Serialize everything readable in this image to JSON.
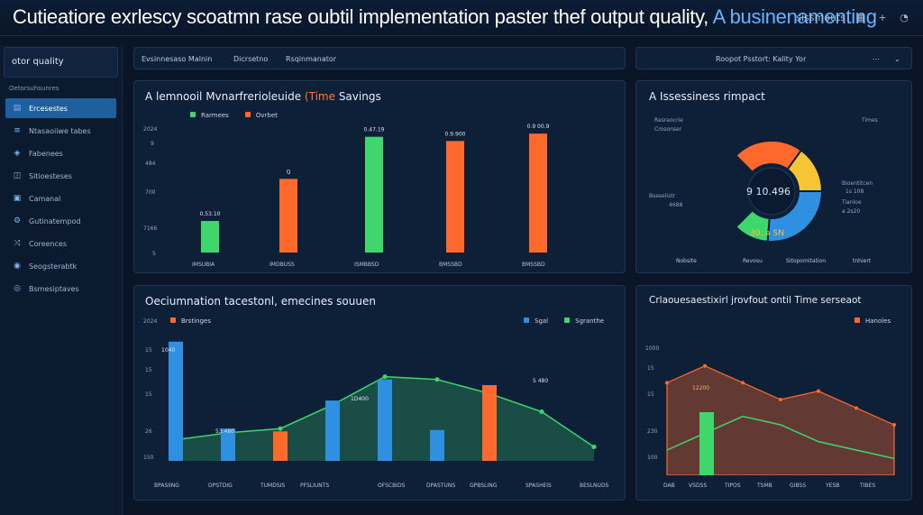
{
  "header": {
    "title_main": "Cutieatiore exrlescy scoatmn rase oubtil implementation paster thef output quality,",
    "title_accent": "A businenamenting",
    "right_text": "sissmouts",
    "icons": [
      "search-icon",
      "grid-icon",
      "plus-icon",
      "user-icon"
    ]
  },
  "sidebar": {
    "header": "otor quality",
    "subheader": "Oetorsuhsunres",
    "items": [
      {
        "label": "Ercesestes",
        "icon": "chart-icon",
        "active": true
      },
      {
        "label": "Ntasaoiiwe tabes",
        "icon": "table-icon",
        "active": false
      },
      {
        "label": "Fabenees",
        "icon": "stack-icon",
        "active": false
      },
      {
        "label": "Sitioesteses",
        "icon": "layers-icon",
        "active": false
      },
      {
        "label": "Camanal",
        "icon": "box-icon",
        "active": false
      },
      {
        "label": "Gutinatempod",
        "icon": "gear-icon",
        "active": false
      },
      {
        "label": "Coreences",
        "icon": "share-icon",
        "active": false
      },
      {
        "label": "Seogsterabtk",
        "icon": "eye-icon",
        "active": false
      },
      {
        "label": "Bsmesiptaves",
        "icon": "link-icon",
        "active": false
      }
    ]
  },
  "strip_left": {
    "a": "Evsinnesaso Malnin",
    "b": "Dicrsetno",
    "c": "Rsqinmanator"
  },
  "strip_right": {
    "text": "Roopot Psstort: Kality Yor"
  },
  "panel1": {
    "title_main": "A lemnooil Mvnarfrerioleuide",
    "title_accent": "(Time",
    "title_end": "Savings",
    "legend": [
      "Rarmees",
      "Ovrbet"
    ],
    "axis_labels": [
      "2024",
      "9",
      "484",
      "700",
      "7166",
      "5"
    ],
    "cat_labels": [
      "IMSUBIA",
      "IMDBUSS",
      "ISMBBSD",
      "BMSSBD",
      "BMSSBD"
    ]
  },
  "panel2": {
    "title": "A Issessiness rimpact",
    "legend_left": [
      "Rasraocrie",
      "Crosonser"
    ],
    "legend_right": "Times",
    "center_value": "9 10.496",
    "bottom_value": "30. a SN",
    "right_notes": [
      "Bioentitcen",
      "1s 108",
      "Tianloe",
      "a 2s20"
    ],
    "left_notes": [
      "Bseselistr",
      "4688"
    ],
    "footer": [
      "Nobsite",
      "Revosu",
      "Sitopomitation",
      "tnhiert"
    ]
  },
  "panel3": {
    "title": "Oeciumnation tacestonl, emecines souuen",
    "legend": [
      "Brstinges",
      "Sgal",
      "Sgranthe"
    ],
    "axis_labels": [
      "2024",
      "15",
      "15",
      "15",
      "26",
      "150"
    ],
    "bar_labels": [
      "1040",
      "53.480",
      "1D400",
      "5 480"
    ],
    "cat_labels": [
      "BPASIING",
      "DPSTDIG",
      "TUMDSIS",
      "PFSLIUNTS",
      "OFSCBIDS",
      "DPASTUNS",
      "GPBSLING",
      "SPASHEIS",
      "BESLNUDS"
    ]
  },
  "panel4": {
    "title": "Crlaouesaestixirl jrovfout ontil Time serseaot",
    "legend": "Hanoles",
    "axis_labels": [
      "1000",
      "15",
      "15",
      "230",
      "100"
    ],
    "bar_label": "12200",
    "cat_labels": [
      "DAB",
      "VSDSS",
      "TIPOS",
      "TSMB",
      "GIBSS",
      "YESB",
      "TIBES"
    ]
  },
  "chart_data": [
    {
      "type": "bar",
      "title": "A lemnooil Mvnarfrerioleuide (Time Savings",
      "categories": [
        "IMSUBIA",
        "IMDBUSS",
        "ISMBBSD",
        "BMSSBD",
        "BMSSBD"
      ],
      "series": [
        {
          "name": "Rarmees",
          "values": [
            3.0,
            null,
            11.0,
            null,
            null
          ],
          "color": "#3fd66b"
        },
        {
          "name": "Ovrbet",
          "values": [
            null,
            7.0,
            null,
            10.6,
            11.3
          ],
          "color": "#ff6a2c"
        }
      ],
      "data_labels": [
        "0.53.10",
        "Q",
        "0.47.19",
        "0.9.900",
        "0.9 00.9"
      ]
    },
    {
      "type": "pie",
      "title": "A Issessiness rimpact",
      "center_label": "9 10.496",
      "slices": [
        {
          "label": "orange",
          "value": 30,
          "color": "#ff6a2c"
        },
        {
          "label": "yellow",
          "value": 20,
          "color": "#f5c533"
        },
        {
          "label": "blue",
          "value": 35,
          "color": "#2f8fe0"
        },
        {
          "label": "green",
          "value": 15,
          "color": "#3fd66b"
        }
      ]
    },
    {
      "type": "line",
      "title": "Oeciumnation tacestonl, emecines souuen",
      "categories": [
        "BPASIING",
        "DPSTDIG",
        "TUMDSIS",
        "PFSLIUNTS",
        "OFSCBIDS",
        "DPASTUNS",
        "GPBSLING",
        "SPASHEIS",
        "BESLNUDS"
      ],
      "series": [
        {
          "name": "Sgranthe",
          "values": [
            1.5,
            2.0,
            2.3,
            4.0,
            6.0,
            5.8,
            4.8,
            3.5,
            1.0
          ],
          "color": "#3fd66b"
        }
      ],
      "bars": [
        {
          "name": "Sgal",
          "values": [
            8.5,
            2.3,
            0,
            4.3,
            5.8,
            2.2,
            0,
            0,
            0
          ],
          "color": "#2f8fe0"
        },
        {
          "name": "Brstinges",
          "values": [
            0,
            0,
            2.1,
            0,
            0,
            0,
            5.4,
            0,
            0
          ],
          "color": "#ff6a2c"
        }
      ]
    },
    {
      "type": "area",
      "title": "Crlaouesaestixirl jrovfout ontil Time serseaot",
      "categories": [
        "DAB",
        "VSDSS",
        "TIPOS",
        "TSMB",
        "GIBSS",
        "YESB",
        "TIBES"
      ],
      "series": [
        {
          "name": "Hanoles",
          "values": [
            11,
            13,
            11,
            9,
            10,
            8,
            6
          ],
          "color": "#ff6a2c"
        },
        {
          "name": "line",
          "values": [
            3,
            5,
            7,
            6,
            4,
            3,
            2
          ],
          "color": "#3fd66b"
        }
      ]
    }
  ]
}
